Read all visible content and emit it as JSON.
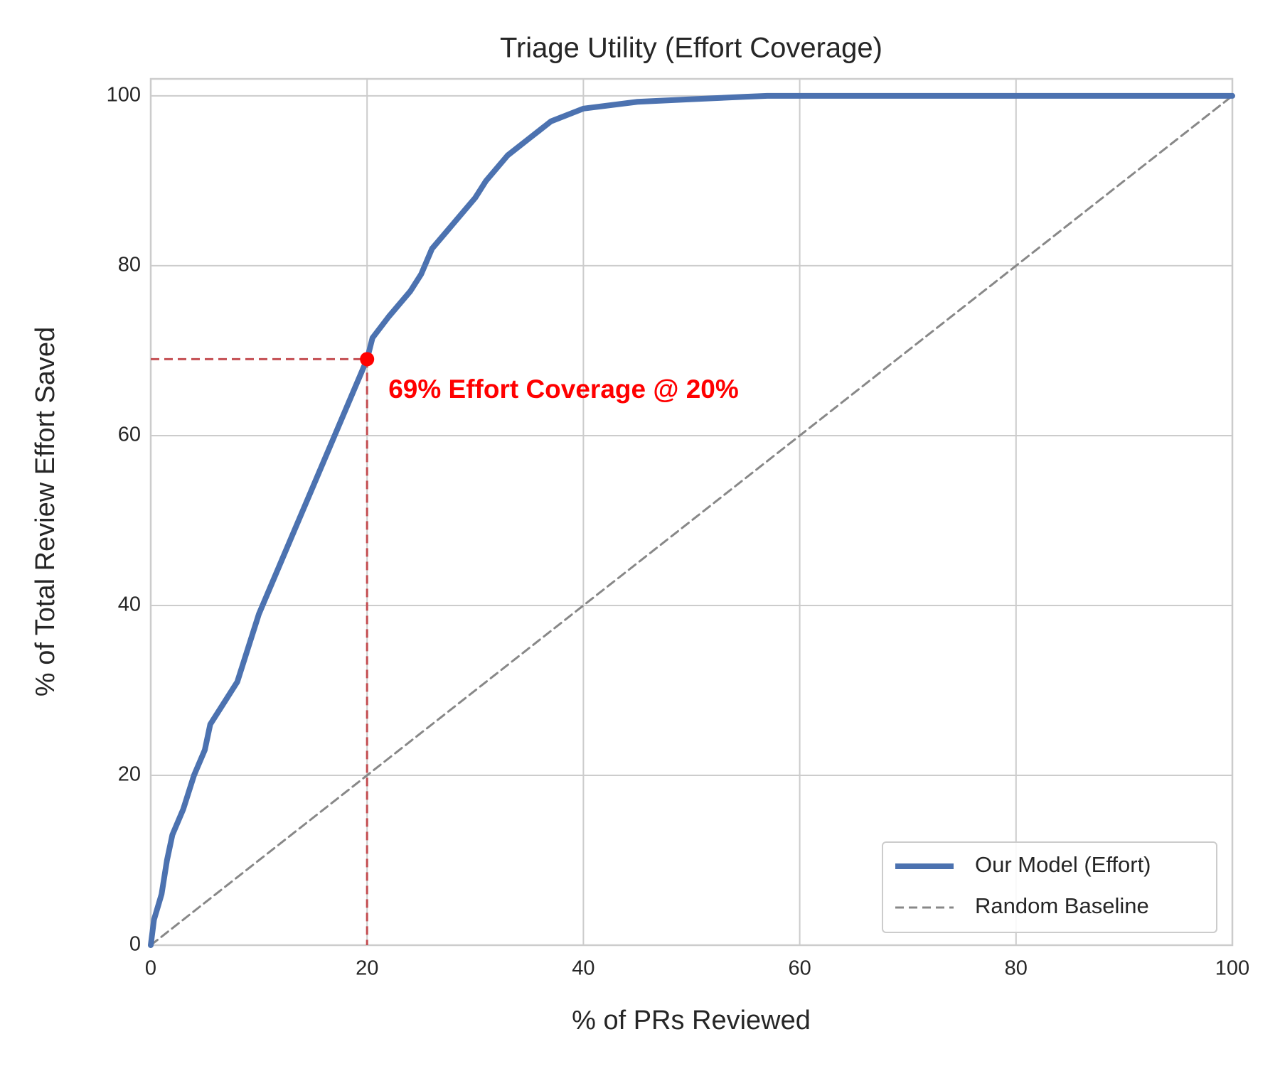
{
  "chart_data": {
    "type": "line",
    "title": "Triage Utility (Effort Coverage)",
    "xlabel": "% of PRs Reviewed",
    "ylabel": "% of Total Review Effort Saved",
    "xlim": [
      0,
      100
    ],
    "ylim": [
      0,
      102
    ],
    "xticks": [
      0,
      20,
      40,
      60,
      80,
      100
    ],
    "yticks": [
      0,
      20,
      40,
      60,
      80,
      100
    ],
    "grid": true,
    "legend": "lower right",
    "series": [
      {
        "name": "Our Model (Effort)",
        "color": "#4c72b0",
        "dash": false,
        "x": [
          0,
          0.3,
          1,
          1.5,
          2,
          3,
          4,
          5,
          5.5,
          7,
          8,
          9,
          10,
          11,
          12,
          13,
          14,
          15,
          16,
          17,
          18,
          19,
          20,
          20.5,
          22,
          24,
          25,
          26,
          28,
          30,
          31,
          33,
          35,
          37,
          40,
          45,
          50,
          55,
          57,
          100
        ],
        "values": [
          0,
          3,
          6,
          10,
          13,
          16,
          20,
          23,
          26,
          29,
          31,
          35,
          39,
          42,
          45,
          48,
          51,
          54,
          57,
          60,
          63,
          66,
          69,
          71.5,
          74,
          77,
          79,
          82,
          85,
          88,
          90,
          93,
          95,
          97,
          98.5,
          99.3,
          99.6,
          99.9,
          100,
          100
        ]
      },
      {
        "name": "Random Baseline",
        "color": "#888888",
        "dash": true,
        "x": [
          0,
          100
        ],
        "values": [
          0,
          100
        ]
      }
    ],
    "annotation": {
      "text": "69% Effort Coverage @ 20%",
      "x": 20,
      "y": 69,
      "color": "#ff0000",
      "guide_color": "#c44e52"
    }
  }
}
